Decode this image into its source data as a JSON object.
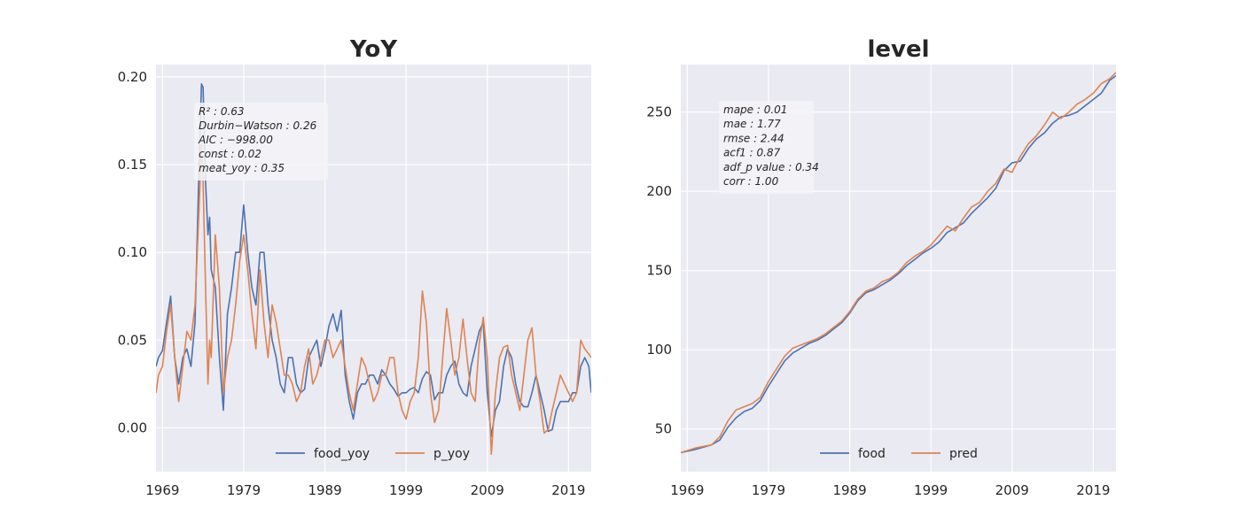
{
  "colors": {
    "blue": "#4c72b0",
    "orange": "#dd8452",
    "panel_bg": "#eaeaf2",
    "grid": "#ffffff"
  },
  "chart_data": [
    {
      "type": "line",
      "title": "YoY",
      "xlabel": "",
      "ylabel": "",
      "xlim": [
        1968.2,
        2021.8
      ],
      "ylim": [
        -0.025,
        0.207
      ],
      "xticks": [
        1969,
        1979,
        1989,
        1999,
        2009,
        2019
      ],
      "xtick_labels": [
        "1969",
        "1979",
        "1989",
        "1999",
        "2009",
        "2019"
      ],
      "yticks": [
        0.0,
        0.05,
        0.1,
        0.15,
        0.2
      ],
      "ytick_labels": [
        "0.00",
        "0.05",
        "0.10",
        "0.15",
        "0.20"
      ],
      "grid": true,
      "legend": "bottom-center",
      "stats_box": [
        "R² : 0.63",
        "Durbin−Watson : 0.26",
        "AIC : −998.00",
        "const : 0.02",
        "meat_yoy : 0.35"
      ],
      "series": [
        {
          "name": "food_yoy",
          "color": "#4c72b0",
          "x": [
            1968.2,
            1968.5,
            1969,
            1969.5,
            1970,
            1970.5,
            1971,
            1971.5,
            1972,
            1972.5,
            1973,
            1973.5,
            1973.8,
            1974,
            1974.3,
            1974.6,
            1974.8,
            1975,
            1975.5,
            1976,
            1976.5,
            1977,
            1977.5,
            1978,
            1978.5,
            1979,
            1979.5,
            1980,
            1980.5,
            1981,
            1981.5,
            1982,
            1982.5,
            1983,
            1983.5,
            1984,
            1984.5,
            1985,
            1985.5,
            1986,
            1986.5,
            1987,
            1987.5,
            1988,
            1988.5,
            1989,
            1989.5,
            1990,
            1990.5,
            1991,
            1991.5,
            1992,
            1992.5,
            1993,
            1993.5,
            1994,
            1994.5,
            1995,
            1995.5,
            1996,
            1996.5,
            1997,
            1997.5,
            1998,
            1998.5,
            1999,
            1999.5,
            2000,
            2000.5,
            2001,
            2001.5,
            2002,
            2002.5,
            2003,
            2003.5,
            2004,
            2004.5,
            2005,
            2005.5,
            2006,
            2006.5,
            2007,
            2007.5,
            2008,
            2008.5,
            2009,
            2009.5,
            2010,
            2010.5,
            2011,
            2011.5,
            2012,
            2012.5,
            2013,
            2013.5,
            2014,
            2014.5,
            2015,
            2015.5,
            2016,
            2016.5,
            2017,
            2017.5,
            2018,
            2018.5,
            2019,
            2019.5,
            2020,
            2020.5,
            2021,
            2021.5,
            2021.8
          ],
          "y": [
            0.035,
            0.04,
            0.044,
            0.06,
            0.075,
            0.04,
            0.025,
            0.04,
            0.045,
            0.035,
            0.06,
            0.15,
            0.196,
            0.194,
            0.14,
            0.11,
            0.12,
            0.09,
            0.08,
            0.04,
            0.01,
            0.065,
            0.08,
            0.1,
            0.1,
            0.127,
            0.1,
            0.08,
            0.07,
            0.1,
            0.1,
            0.07,
            0.05,
            0.04,
            0.025,
            0.02,
            0.04,
            0.04,
            0.025,
            0.02,
            0.022,
            0.04,
            0.045,
            0.05,
            0.035,
            0.045,
            0.058,
            0.065,
            0.055,
            0.067,
            0.03,
            0.015,
            0.005,
            0.02,
            0.025,
            0.025,
            0.03,
            0.03,
            0.025,
            0.033,
            0.03,
            0.025,
            0.022,
            0.018,
            0.02,
            0.02,
            0.022,
            0.023,
            0.02,
            0.028,
            0.032,
            0.03,
            0.016,
            0.02,
            0.02,
            0.03,
            0.035,
            0.038,
            0.025,
            0.02,
            0.018,
            0.035,
            0.045,
            0.055,
            0.06,
            0.02,
            -0.005,
            0.01,
            0.015,
            0.035,
            0.045,
            0.04,
            0.025,
            0.015,
            0.012,
            0.012,
            0.02,
            0.03,
            0.02,
            0.01,
            -0.002,
            -0.001,
            0.01,
            0.015,
            0.015,
            0.015,
            0.02,
            0.02,
            0.035,
            0.04,
            0.035,
            0.02
          ]
        },
        {
          "name": "p_yoy",
          "color": "#dd8452",
          "x": [
            1968.2,
            1968.5,
            1969,
            1969.5,
            1970,
            1970.5,
            1971,
            1971.5,
            1972,
            1972.5,
            1973,
            1973.5,
            1973.8,
            1974,
            1974.3,
            1974.6,
            1974.8,
            1975,
            1975.5,
            1976,
            1976.5,
            1977,
            1977.5,
            1978,
            1978.5,
            1979,
            1979.5,
            1980,
            1980.5,
            1981,
            1981.5,
            1982,
            1982.5,
            1983,
            1983.5,
            1984,
            1984.5,
            1985,
            1985.5,
            1986,
            1986.5,
            1987,
            1987.5,
            1988,
            1988.5,
            1989,
            1989.5,
            1990,
            1990.5,
            1991,
            1991.5,
            1992,
            1992.5,
            1993,
            1993.5,
            1994,
            1994.5,
            1995,
            1995.5,
            1996,
            1996.5,
            1997,
            1997.5,
            1998,
            1998.5,
            1999,
            1999.5,
            2000,
            2000.5,
            2001,
            2001.5,
            2002,
            2002.5,
            2003,
            2003.5,
            2004,
            2004.5,
            2005,
            2005.5,
            2006,
            2006.5,
            2007,
            2007.5,
            2008,
            2008.5,
            2009,
            2009.5,
            2010,
            2010.5,
            2011,
            2011.5,
            2012,
            2012.5,
            2013,
            2013.5,
            2014,
            2014.5,
            2015,
            2015.5,
            2016,
            2016.5,
            2017,
            2017.5,
            2018,
            2018.5,
            2019,
            2019.5,
            2020,
            2020.5,
            2021,
            2021.5,
            2021.8
          ],
          "y": [
            0.02,
            0.03,
            0.035,
            0.055,
            0.07,
            0.04,
            0.015,
            0.035,
            0.055,
            0.05,
            0.07,
            0.125,
            0.162,
            0.14,
            0.08,
            0.025,
            0.05,
            0.04,
            0.11,
            0.08,
            0.02,
            0.04,
            0.05,
            0.07,
            0.095,
            0.11,
            0.09,
            0.065,
            0.045,
            0.09,
            0.06,
            0.04,
            0.07,
            0.06,
            0.045,
            0.03,
            0.03,
            0.025,
            0.015,
            0.02,
            0.035,
            0.045,
            0.025,
            0.03,
            0.04,
            0.05,
            0.05,
            0.04,
            0.045,
            0.05,
            0.035,
            0.02,
            0.01,
            0.025,
            0.04,
            0.035,
            0.025,
            0.015,
            0.02,
            0.03,
            0.03,
            0.04,
            0.04,
            0.02,
            0.01,
            0.005,
            0.015,
            0.02,
            0.04,
            0.078,
            0.06,
            0.02,
            0.003,
            0.01,
            0.04,
            0.068,
            0.05,
            0.03,
            0.04,
            0.062,
            0.04,
            0.02,
            0.015,
            0.048,
            0.063,
            0.04,
            -0.015,
            0.02,
            0.04,
            0.046,
            0.047,
            0.03,
            0.02,
            0.01,
            0.03,
            0.05,
            0.057,
            0.03,
            0.015,
            -0.003,
            -0.001,
            0.01,
            0.02,
            0.03,
            0.025,
            0.02,
            0.015,
            0.02,
            0.05,
            0.045,
            0.042,
            0.04
          ]
        }
      ]
    },
    {
      "type": "line",
      "title": "level",
      "xlabel": "",
      "ylabel": "",
      "xlim": [
        1968.2,
        2021.8
      ],
      "ylim": [
        23,
        280
      ],
      "xticks": [
        1969,
        1979,
        1989,
        1999,
        2009,
        2019
      ],
      "xtick_labels": [
        "1969",
        "1979",
        "1989",
        "1999",
        "2009",
        "2019"
      ],
      "yticks": [
        50,
        100,
        150,
        200,
        250
      ],
      "ytick_labels": [
        "50",
        "100",
        "150",
        "200",
        "250"
      ],
      "grid": true,
      "legend": "bottom-center",
      "stats_box": [
        "mape : 0.01",
        "mae : 1.77",
        "rmse : 2.44",
        "acf1 : 0.87",
        "adf_p value : 0.34",
        "corr : 1.00"
      ],
      "series": [
        {
          "name": "food",
          "color": "#4c72b0",
          "x": [
            1968.2,
            1970,
            1972,
            1973,
            1974,
            1975,
            1976,
            1977,
            1978,
            1979,
            1980,
            1981,
            1982,
            1983,
            1984,
            1985,
            1986,
            1987,
            1988,
            1989,
            1990,
            1991,
            1992,
            1993,
            1994,
            1995,
            1996,
            1997,
            1998,
            1999,
            2000,
            2001,
            2002,
            2003,
            2004,
            2005,
            2006,
            2007,
            2008,
            2009,
            2010,
            2011,
            2012,
            2013,
            2014,
            2015,
            2016,
            2017,
            2018,
            2019,
            2020,
            2021,
            2021.8
          ],
          "y": [
            35,
            37,
            40,
            43,
            51,
            57,
            61,
            63,
            68,
            77,
            85,
            93,
            98,
            101,
            104,
            106,
            109,
            113,
            117,
            123,
            131,
            136,
            138,
            141,
            144,
            148,
            153,
            157,
            161,
            164,
            168,
            174,
            177,
            180,
            186,
            191,
            196,
            202,
            213,
            218,
            219,
            227,
            233,
            237,
            243,
            247,
            248,
            250,
            254,
            258,
            262,
            270,
            273
          ]
        },
        {
          "name": "pred",
          "color": "#dd8452",
          "x": [
            1968.2,
            1970,
            1972,
            1973,
            1974,
            1975,
            1976,
            1977,
            1978,
            1979,
            1980,
            1981,
            1982,
            1983,
            1984,
            1985,
            1986,
            1987,
            1988,
            1989,
            1990,
            1991,
            1992,
            1993,
            1994,
            1995,
            1996,
            1997,
            1998,
            1999,
            2000,
            2001,
            2002,
            2003,
            2004,
            2005,
            2006,
            2007,
            2008,
            2009,
            2010,
            2011,
            2012,
            2013,
            2014,
            2015,
            2016,
            2017,
            2018,
            2019,
            2020,
            2021,
            2021.8
          ],
          "y": [
            35,
            38,
            40,
            45,
            55,
            62,
            64,
            66,
            70,
            80,
            88,
            96,
            101,
            103,
            105,
            107,
            110,
            114,
            118,
            124,
            132,
            137,
            139,
            143,
            145,
            149,
            155,
            159,
            162,
            166,
            172,
            178,
            175,
            183,
            190,
            193,
            200,
            205,
            214,
            212,
            222,
            230,
            235,
            242,
            250,
            246,
            250,
            255,
            258,
            262,
            268,
            271,
            275
          ]
        }
      ]
    }
  ]
}
